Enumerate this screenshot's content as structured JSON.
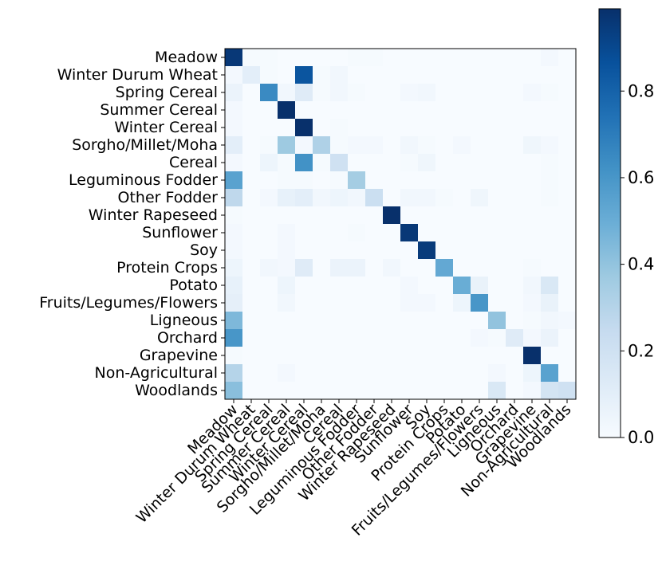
{
  "chart_data": {
    "type": "heatmap",
    "title": "",
    "xlabel": "",
    "ylabel": "",
    "colormap": "Blues",
    "vmin": 0.0,
    "vmax": 0.99,
    "colorbar_ticks": [
      "0.0",
      "0.2",
      "0.4",
      "0.6",
      "0.8"
    ],
    "colorbar_tick_values": [
      0.0,
      0.2,
      0.4,
      0.6,
      0.8
    ],
    "row_labels": [
      "Meadow",
      "Winter Durum Wheat",
      "Spring Cereal",
      "Summer Cereal",
      "Winter Cereal",
      "Sorgho/Millet/Moha",
      "Cereal",
      "Leguminous Fodder",
      "Other Fodder",
      "Winter Rapeseed",
      "Sunflower",
      "Soy",
      "Protein Crops",
      "Potato",
      "Fruits/Legumes/Flowers",
      "Ligneous",
      "Orchard",
      "Grapevine",
      "Non-Agricultural",
      "Woodlands"
    ],
    "col_labels": [
      "Meadow",
      "Winter Durum Wheat",
      "Spring Cereal",
      "Summer Cereal",
      "Winter Cereal",
      "Sorgho/Millet/Moha",
      "Cereal",
      "Leguminous Fodder",
      "Other Fodder",
      "Winter Rapeseed",
      "Sunflower",
      "Soy",
      "Protein Crops",
      "Potato",
      "Fruits/Legumes/Flowers",
      "Ligneous",
      "Orchard",
      "Grapevine",
      "Non-Agricultural",
      "Woodlands"
    ],
    "matrix": [
      [
        0.96,
        0.01,
        0.01,
        0.0,
        0.0,
        0.0,
        0.0,
        0.01,
        0.01,
        0.0,
        0.0,
        0.0,
        0.0,
        0.0,
        0.0,
        0.0,
        0.0,
        0.0,
        0.02,
        0.0
      ],
      [
        0.02,
        0.1,
        0.01,
        0.0,
        0.85,
        0.01,
        0.03,
        0.0,
        0.0,
        0.0,
        0.0,
        0.0,
        0.0,
        0.0,
        0.0,
        0.0,
        0.0,
        0.0,
        0.0,
        0.0
      ],
      [
        0.06,
        0.0,
        0.65,
        0.03,
        0.12,
        0.01,
        0.03,
        0.01,
        0.0,
        0.0,
        0.02,
        0.03,
        0.0,
        0.0,
        0.0,
        0.0,
        0.0,
        0.02,
        0.01,
        0.0
      ],
      [
        0.02,
        0.0,
        0.0,
        0.99,
        0.0,
        0.0,
        0.0,
        0.0,
        0.0,
        0.0,
        0.0,
        0.0,
        0.0,
        0.0,
        0.0,
        0.0,
        0.0,
        0.0,
        0.0,
        0.0
      ],
      [
        0.02,
        0.0,
        0.0,
        0.0,
        0.99,
        0.0,
        0.01,
        0.0,
        0.0,
        0.0,
        0.0,
        0.0,
        0.0,
        0.0,
        0.0,
        0.0,
        0.0,
        0.0,
        0.0,
        0.0
      ],
      [
        0.1,
        0.0,
        0.01,
        0.37,
        0.02,
        0.32,
        0.01,
        0.02,
        0.02,
        0.0,
        0.03,
        0.01,
        0.0,
        0.02,
        0.0,
        0.0,
        0.0,
        0.04,
        0.02,
        0.0
      ],
      [
        0.02,
        0.0,
        0.05,
        0.01,
        0.62,
        0.01,
        0.2,
        0.0,
        0.0,
        0.0,
        0.01,
        0.04,
        0.0,
        0.0,
        0.0,
        0.0,
        0.0,
        0.0,
        0.01,
        0.0
      ],
      [
        0.55,
        0.0,
        0.0,
        0.01,
        0.01,
        0.0,
        0.01,
        0.35,
        0.0,
        0.0,
        0.0,
        0.0,
        0.0,
        0.0,
        0.0,
        0.0,
        0.0,
        0.0,
        0.01,
        0.0
      ],
      [
        0.27,
        0.0,
        0.02,
        0.08,
        0.1,
        0.03,
        0.05,
        0.03,
        0.22,
        0.0,
        0.03,
        0.03,
        0.01,
        0.0,
        0.04,
        0.0,
        0.0,
        0.0,
        0.01,
        0.0
      ],
      [
        0.01,
        0.0,
        0.0,
        0.0,
        0.0,
        0.0,
        0.0,
        0.0,
        0.0,
        0.99,
        0.0,
        0.0,
        0.0,
        0.0,
        0.0,
        0.0,
        0.0,
        0.0,
        0.0,
        0.0
      ],
      [
        0.02,
        0.0,
        0.0,
        0.02,
        0.0,
        0.0,
        0.0,
        0.01,
        0.0,
        0.0,
        0.96,
        0.0,
        0.0,
        0.0,
        0.0,
        0.0,
        0.0,
        0.0,
        0.0,
        0.0
      ],
      [
        0.02,
        0.0,
        0.0,
        0.02,
        0.0,
        0.0,
        0.0,
        0.0,
        0.0,
        0.0,
        0.0,
        0.95,
        0.0,
        0.0,
        0.0,
        0.0,
        0.0,
        0.0,
        0.0,
        0.0
      ],
      [
        0.05,
        0.0,
        0.03,
        0.02,
        0.12,
        0.0,
        0.06,
        0.06,
        0.0,
        0.03,
        0.0,
        0.0,
        0.52,
        0.0,
        0.0,
        0.0,
        0.0,
        0.01,
        0.0,
        0.0
      ],
      [
        0.08,
        0.0,
        0.0,
        0.05,
        0.0,
        0.0,
        0.0,
        0.0,
        0.0,
        0.0,
        0.02,
        0.0,
        0.0,
        0.5,
        0.07,
        0.0,
        0.0,
        0.03,
        0.15,
        0.0
      ],
      [
        0.09,
        0.0,
        0.0,
        0.03,
        0.0,
        0.0,
        0.0,
        0.0,
        0.0,
        0.0,
        0.02,
        0.02,
        0.0,
        0.05,
        0.6,
        0.0,
        0.0,
        0.02,
        0.07,
        0.0
      ],
      [
        0.45,
        0.0,
        0.0,
        0.0,
        0.0,
        0.0,
        0.0,
        0.0,
        0.0,
        0.0,
        0.0,
        0.0,
        0.0,
        0.0,
        0.0,
        0.4,
        0.0,
        0.01,
        0.03,
        0.02
      ],
      [
        0.6,
        0.0,
        0.0,
        0.0,
        0.0,
        0.0,
        0.0,
        0.0,
        0.0,
        0.0,
        0.0,
        0.0,
        0.0,
        0.0,
        0.02,
        0.01,
        0.12,
        0.02,
        0.06,
        0.0
      ],
      [
        0.01,
        0.0,
        0.0,
        0.0,
        0.0,
        0.0,
        0.0,
        0.0,
        0.0,
        0.0,
        0.0,
        0.0,
        0.0,
        0.0,
        0.0,
        0.0,
        0.0,
        0.99,
        0.0,
        0.0
      ],
      [
        0.3,
        0.0,
        0.0,
        0.02,
        0.0,
        0.0,
        0.0,
        0.0,
        0.0,
        0.0,
        0.0,
        0.0,
        0.0,
        0.0,
        0.0,
        0.02,
        0.0,
        0.05,
        0.55,
        0.0
      ],
      [
        0.42,
        0.0,
        0.0,
        0.0,
        0.0,
        0.0,
        0.0,
        0.0,
        0.0,
        0.0,
        0.0,
        0.0,
        0.0,
        0.0,
        0.0,
        0.15,
        0.0,
        0.02,
        0.18,
        0.2
      ]
    ]
  }
}
